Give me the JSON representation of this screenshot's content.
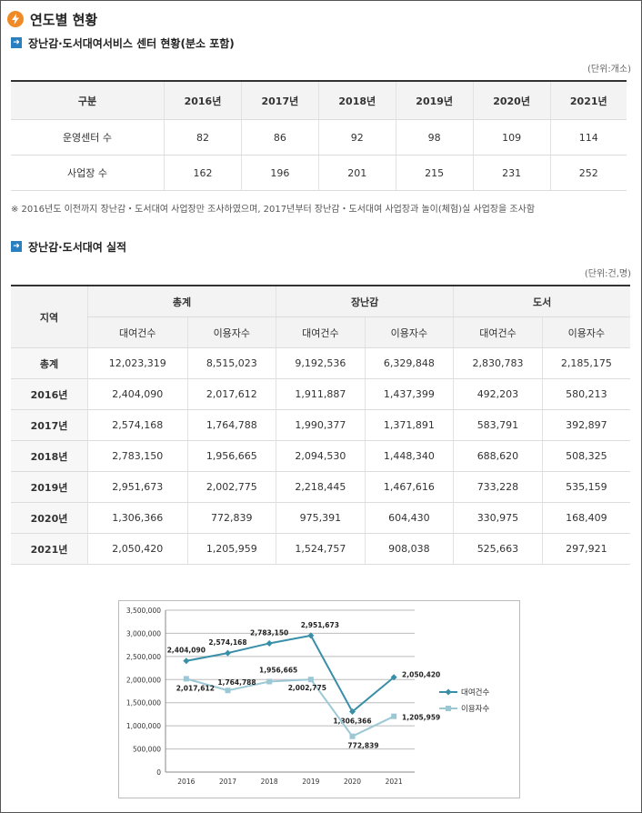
{
  "page": {
    "title": "연도별 현황",
    "section1_title": "장난감·도서대여서비스 센터 현황(분소 포함)",
    "section1_unit": "(단위:개소)",
    "section2_title": "장난감·도서대여 실적",
    "section2_unit": "(단위:건,명)",
    "note": "※ 2016년도 이전까지 장난감・도서대여 사업장만 조사하였으며, 2017년부터 장난감・도서대여 사업장과 놀이(체험)실 사업장을 조사함"
  },
  "table1": {
    "corner": "구분",
    "years": [
      "2016년",
      "2017년",
      "2018년",
      "2019년",
      "2020년",
      "2021년"
    ],
    "rows": [
      {
        "label": "운영센터 수",
        "values": [
          "82",
          "86",
          "92",
          "98",
          "109",
          "114"
        ]
      },
      {
        "label": "사업장 수",
        "values": [
          "162",
          "196",
          "201",
          "215",
          "231",
          "252"
        ]
      }
    ]
  },
  "table2": {
    "region": "지역",
    "groups": [
      "총계",
      "장난감",
      "도서"
    ],
    "subheaders": [
      "대여건수",
      "이용자수",
      "대여건수",
      "이용자수",
      "대여건수",
      "이용자수"
    ],
    "rows": [
      {
        "label": "총계",
        "values": [
          "12,023,319",
          "8,515,023",
          "9,192,536",
          "6,329,848",
          "2,830,783",
          "2,185,175"
        ]
      },
      {
        "label": "2016년",
        "values": [
          "2,404,090",
          "2,017,612",
          "1,911,887",
          "1,437,399",
          "492,203",
          "580,213"
        ]
      },
      {
        "label": "2017년",
        "values": [
          "2,574,168",
          "1,764,788",
          "1,990,377",
          "1,371,891",
          "583,791",
          "392,897"
        ]
      },
      {
        "label": "2018년",
        "values": [
          "2,783,150",
          "1,956,665",
          "2,094,530",
          "1,448,340",
          "688,620",
          "508,325"
        ]
      },
      {
        "label": "2019년",
        "values": [
          "2,951,673",
          "2,002,775",
          "2,218,445",
          "1,467,616",
          "733,228",
          "535,159"
        ]
      },
      {
        "label": "2020년",
        "values": [
          "1,306,366",
          "772,839",
          "975,391",
          "604,430",
          "330,975",
          "168,409"
        ]
      },
      {
        "label": "2021년",
        "values": [
          "2,050,420",
          "1,205,959",
          "1,524,757",
          "908,038",
          "525,663",
          "297,921"
        ]
      }
    ]
  },
  "chart_data": {
    "type": "line",
    "x": [
      "2016",
      "2017",
      "2018",
      "2019",
      "2020",
      "2021"
    ],
    "ylim": [
      0,
      3500000
    ],
    "yticks": [
      "3,500,000",
      "3,000,000",
      "2,500,000",
      "2,000,000",
      "1,500,000",
      "1,000,000",
      "500,000",
      "0"
    ],
    "grid": true,
    "legend": "right",
    "series": [
      {
        "name": "대여건수",
        "color": "#3a8fa8",
        "marker": "diamond",
        "values": [
          2404090,
          2574168,
          2783150,
          2951673,
          1306366,
          2050420
        ],
        "labels": [
          "2,404,090",
          "2,574,168",
          "2,783,150",
          "2,951,673",
          "1,306,366",
          "2,050,420"
        ]
      },
      {
        "name": "이용자수",
        "color": "#9cc8d6",
        "marker": "square",
        "values": [
          2017612,
          1764788,
          1956665,
          2002775,
          772839,
          1205959
        ],
        "labels": [
          "2,017,612",
          "1,764,788",
          "1,956,665",
          "2,002,775",
          "772,839",
          "1,205,959"
        ]
      }
    ]
  }
}
